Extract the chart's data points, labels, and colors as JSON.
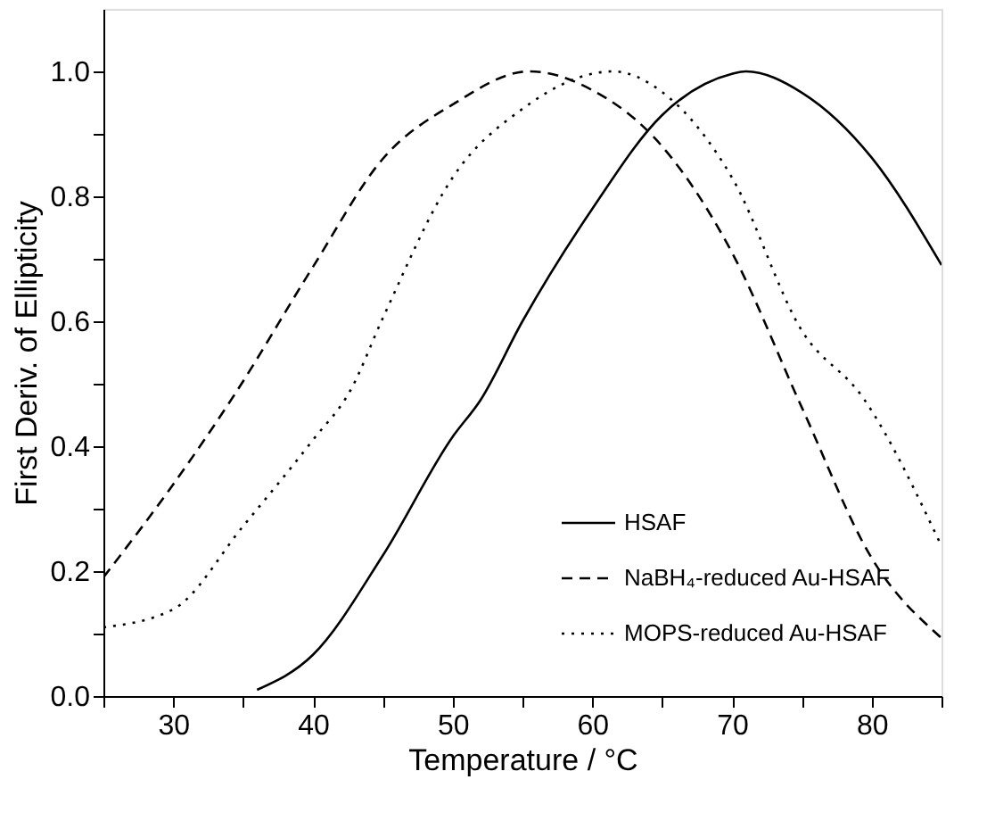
{
  "chart_data": {
    "type": "line",
    "xlabel": "Temperature / °C",
    "ylabel": "First Deriv. of Ellipticity",
    "xlim": [
      25,
      85
    ],
    "ylim": [
      0,
      1.1
    ],
    "xticks": [
      {
        "value": 25,
        "label": null
      },
      30,
      {
        "value": 35,
        "label": null
      },
      40,
      {
        "value": 45,
        "label": null
      },
      50,
      {
        "value": 55,
        "label": null
      },
      60,
      {
        "value": 65,
        "label": null
      },
      70,
      {
        "value": 75,
        "label": null
      },
      80,
      {
        "value": 85,
        "label": null
      }
    ],
    "yticks": [
      {
        "value": 0,
        "label": "0.0"
      },
      {
        "value": 0.1,
        "label": null
      },
      0.2,
      {
        "value": 0.3,
        "label": null
      },
      0.4,
      {
        "value": 0.5,
        "label": null
      },
      0.6,
      {
        "value": 0.7,
        "label": null
      },
      0.8,
      {
        "value": 0.9,
        "label": null
      },
      {
        "value": 1,
        "label": "1.0"
      }
    ],
    "grid": false,
    "legend": "bottom right",
    "marker": "none",
    "series": [
      {
        "name": "HSAF",
        "color": "#000000",
        "line_style": "solid",
        "x": [
          36,
          40,
          45,
          50,
          52,
          55,
          60,
          65,
          70,
          71,
          75,
          80,
          85
        ],
        "values": [
          0.01,
          0.066,
          0.225,
          0.415,
          0.474,
          0.6,
          0.78,
          0.93,
          0.996,
          1.0,
          0.966,
          0.862,
          0.69
        ]
      },
      {
        "name": "NaBH₄-reduced Au-HSAF",
        "color": "#000000",
        "line_style": "dashed",
        "x": [
          25,
          30,
          34.4,
          40,
          45,
          50,
          55.5,
          60,
          65,
          70,
          75,
          80,
          85
        ],
        "values": [
          0.19,
          0.339,
          0.483,
          0.687,
          0.86,
          0.947,
          1.0,
          0.97,
          0.88,
          0.71,
          0.462,
          0.221,
          0.093
        ]
      },
      {
        "name": "MOPS-reduced Au-HSAF",
        "color": "#000000",
        "line_style": "dotted",
        "x": [
          25,
          30,
          35,
          40,
          42.7,
          45,
          50,
          55,
          61.5,
          65,
          70,
          75,
          79.4,
          85
        ],
        "values": [
          0.11,
          0.139,
          0.272,
          0.41,
          0.49,
          0.605,
          0.83,
          0.94,
          1.0,
          0.967,
          0.83,
          0.585,
          0.477,
          0.24
        ]
      }
    ]
  }
}
